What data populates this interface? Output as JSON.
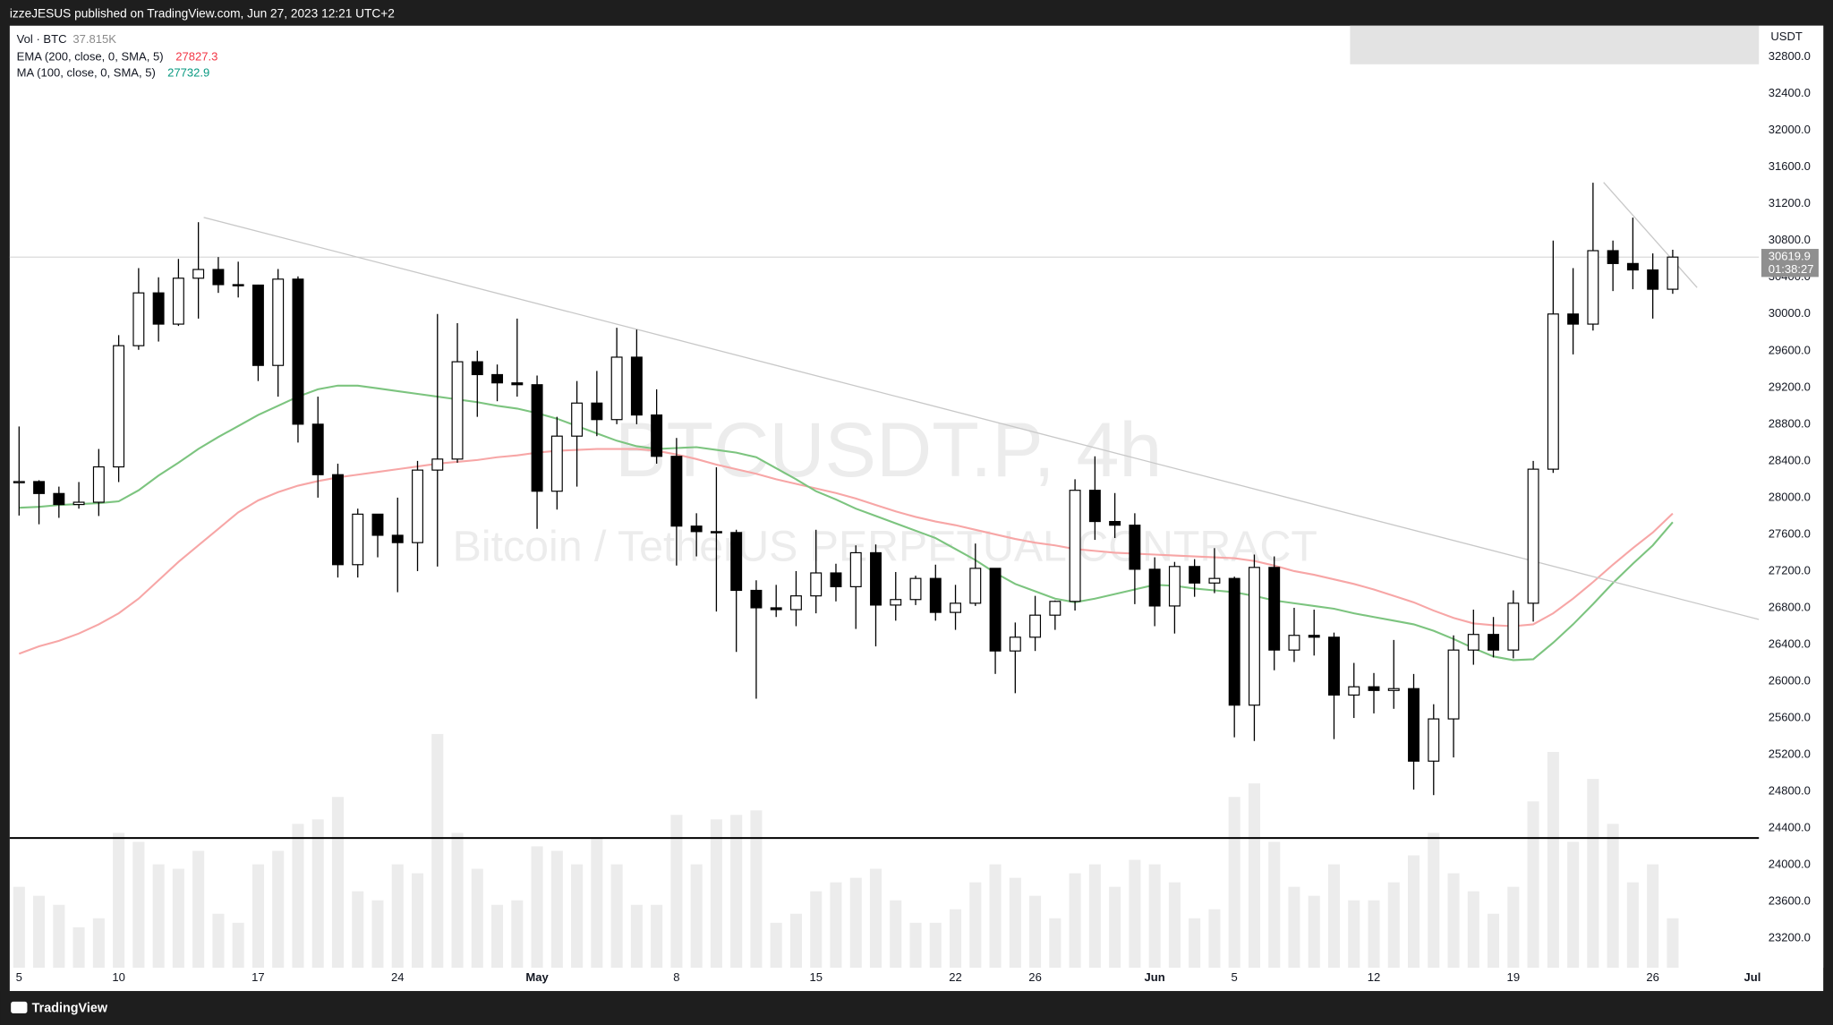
{
  "chart_data": {
    "type": "candlestick",
    "title": "BTCUSDT.P, 4h",
    "subtitle": "Bitcoin / TetherUS PERPETUAL CONTRACT",
    "attribution": "izzeJESUS published on TradingView.com, Jun 27, 2023 12:21 UTC+2",
    "brand": "TradingView",
    "y_unit": "USDT",
    "categories": [
      "5",
      null,
      null,
      null,
      null,
      "10",
      null,
      null,
      null,
      null,
      null,
      null,
      "17",
      null,
      null,
      null,
      null,
      null,
      null,
      "24",
      null,
      null,
      null,
      null,
      null,
      null,
      "May",
      null,
      null,
      null,
      null,
      null,
      null,
      "8",
      null,
      null,
      null,
      null,
      null,
      null,
      "15",
      null,
      null,
      null,
      null,
      null,
      null,
      "22",
      null,
      null,
      null,
      "26",
      null,
      null,
      null,
      null,
      null,
      "Jun",
      null,
      null,
      null,
      "5",
      null,
      null,
      null,
      null,
      null,
      null,
      "12",
      null,
      null,
      null,
      null,
      null,
      null,
      "19",
      null,
      null,
      null,
      null,
      null,
      null,
      "26",
      null,
      null,
      null,
      null,
      "Jul"
    ],
    "open": [
      28170,
      28175,
      28045,
      27925,
      27950,
      28335,
      29655,
      30230,
      29890,
      30390,
      30485,
      30320,
      30315,
      29440,
      30380,
      28800,
      28250,
      27270,
      27820,
      27590,
      27510,
      28300,
      28420,
      29480,
      29340,
      29250,
      29230,
      28070,
      28670,
      29030,
      28850,
      29530,
      28900,
      28450,
      27690,
      27630,
      27620,
      26990,
      26800,
      26780,
      26930,
      27180,
      27030,
      27400,
      26830,
      26890,
      27120,
      26750,
      26850,
      27230,
      26330,
      26480,
      26720,
      26870,
      28080,
      27740,
      27700,
      27220,
      26820,
      27250,
      27070,
      27120,
      25740,
      27240,
      26340,
      26500,
      26480,
      25850,
      25940,
      25900,
      25920,
      25130,
      25590,
      26340,
      26510,
      26340,
      26850,
      28310,
      30000,
      29890,
      30690,
      30550,
      30480,
      30270,
      null,
      null,
      null,
      null
    ],
    "high": [
      28775,
      28190,
      28120,
      28170,
      28530,
      29770,
      30500,
      30400,
      30600,
      31000,
      30620,
      30570,
      30320,
      30490,
      30410,
      29100,
      28370,
      27880,
      27820,
      28000,
      28400,
      30000,
      29900,
      29600,
      29450,
      29950,
      29330,
      28880,
      29270,
      29380,
      29850,
      29830,
      29180,
      28650,
      27830,
      28330,
      27650,
      27100,
      27050,
      27200,
      27650,
      27280,
      27480,
      27490,
      27190,
      27150,
      27270,
      27050,
      27500,
      27230,
      26640,
      26930,
      26880,
      28200,
      28450,
      28050,
      27830,
      27350,
      27300,
      27330,
      27450,
      27140,
      27380,
      27360,
      26800,
      26780,
      26530,
      26200,
      26090,
      26450,
      26080,
      25750,
      26500,
      26780,
      26700,
      26990,
      28400,
      30800,
      30500,
      31430,
      30800,
      31050,
      30660,
      30700,
      null,
      null,
      null,
      null
    ],
    "low": [
      27805,
      27710,
      27780,
      27880,
      27800,
      28170,
      29610,
      29700,
      29870,
      29950,
      30230,
      30180,
      29270,
      29100,
      28600,
      28000,
      27130,
      27130,
      27350,
      26970,
      27200,
      27250,
      28380,
      28880,
      29050,
      29100,
      27660,
      27870,
      28120,
      28670,
      28800,
      28800,
      28370,
      27260,
      27360,
      26760,
      26320,
      25810,
      26700,
      26600,
      26740,
      26870,
      26570,
      26380,
      26660,
      26830,
      26660,
      26560,
      26820,
      26080,
      25870,
      26330,
      26560,
      26770,
      27540,
      27560,
      26840,
      26600,
      26520,
      26920,
      26960,
      25390,
      25350,
      26120,
      26210,
      26280,
      25370,
      25600,
      25650,
      25700,
      24820,
      24760,
      25170,
      26180,
      26260,
      26250,
      26650,
      28270,
      29560,
      29820,
      30250,
      30270,
      29950,
      30220,
      null,
      null,
      null,
      null
    ],
    "close": [
      28175,
      28045,
      27925,
      27950,
      28335,
      29655,
      30230,
      29890,
      30390,
      30485,
      30320,
      30315,
      29440,
      30380,
      28800,
      28250,
      27270,
      27820,
      27590,
      27510,
      28300,
      28420,
      29480,
      29340,
      29250,
      29230,
      28070,
      28670,
      29030,
      28850,
      29530,
      28900,
      28450,
      27690,
      27630,
      27620,
      26990,
      26800,
      26780,
      26930,
      27180,
      27030,
      27400,
      26830,
      26890,
      27120,
      26750,
      26850,
      27230,
      26330,
      26480,
      26720,
      26870,
      28080,
      27740,
      27700,
      27220,
      26820,
      27250,
      27070,
      27120,
      25740,
      27240,
      26340,
      26500,
      26480,
      25850,
      25940,
      25900,
      25920,
      25130,
      25590,
      26340,
      26510,
      26340,
      26850,
      28310,
      30000,
      29890,
      30690,
      30550,
      30480,
      30270,
      30619.9,
      null,
      null,
      null,
      null
    ],
    "up_color": "#ffffff",
    "down_color": "#000000",
    "volume": {
      "name": "Vol · BTC",
      "value_label": "37.815K",
      "color": "#ececec",
      "values": [
        180,
        160,
        140,
        90,
        110,
        300,
        280,
        230,
        220,
        260,
        120,
        100,
        230,
        260,
        320,
        330,
        380,
        170,
        150,
        230,
        210,
        520,
        300,
        220,
        140,
        150,
        270,
        260,
        230,
        290,
        230,
        140,
        140,
        340,
        230,
        330,
        340,
        350,
        100,
        120,
        170,
        190,
        200,
        220,
        150,
        100,
        100,
        130,
        190,
        230,
        200,
        160,
        110,
        210,
        230,
        180,
        240,
        230,
        190,
        110,
        130,
        380,
        410,
        280,
        180,
        160,
        230,
        150,
        150,
        190,
        250,
        300,
        210,
        170,
        120,
        180,
        370,
        480,
        280,
        420,
        320,
        190,
        230,
        110,
        null,
        null,
        null,
        null
      ]
    },
    "overlays": [
      {
        "name": "EMA (200, close, 0, SMA, 5)",
        "last": 27827.3,
        "color": "#f7a6a6",
        "label_color": "#f23645",
        "values": [
          26300,
          26380,
          26440,
          26520,
          26620,
          26740,
          26900,
          27100,
          27300,
          27480,
          27660,
          27840,
          27970,
          28060,
          28130,
          28180,
          28220,
          28250,
          28280,
          28310,
          28340,
          28370,
          28390,
          28410,
          28440,
          28460,
          28490,
          28510,
          28520,
          28530,
          28530,
          28530,
          28510,
          28470,
          28420,
          28360,
          28310,
          28260,
          28200,
          28150,
          28100,
          28050,
          27990,
          27920,
          27850,
          27790,
          27740,
          27700,
          27650,
          27600,
          27550,
          27510,
          27480,
          27440,
          27420,
          27400,
          27390,
          27380,
          27370,
          27360,
          27350,
          27340,
          27310,
          27260,
          27200,
          27160,
          27110,
          27060,
          27000,
          26930,
          26860,
          26770,
          26690,
          26630,
          26610,
          26600,
          26620,
          26740,
          26900,
          27080,
          27270,
          27450,
          27620,
          27827.3,
          null,
          null,
          null,
          null
        ]
      },
      {
        "name": "MA (100, close, 0, SMA, 5)",
        "last": 27732.9,
        "color": "#7cc47f",
        "label_color": "#089981",
        "values": [
          27890,
          27900,
          27920,
          27930,
          27940,
          27960,
          28080,
          28240,
          28380,
          28530,
          28660,
          28780,
          28900,
          29000,
          29100,
          29180,
          29220,
          29220,
          29190,
          29160,
          29130,
          29100,
          29070,
          29040,
          29000,
          28970,
          28920,
          28860,
          28780,
          28700,
          28620,
          28560,
          28530,
          28540,
          28550,
          28520,
          28490,
          28440,
          28320,
          28200,
          28070,
          27980,
          27880,
          27800,
          27720,
          27640,
          27560,
          27440,
          27320,
          27180,
          27060,
          26980,
          26900,
          26860,
          26900,
          26950,
          27000,
          27050,
          27040,
          27010,
          26990,
          26970,
          26930,
          26880,
          26850,
          26820,
          26790,
          26740,
          26700,
          26660,
          26620,
          26550,
          26460,
          26360,
          26270,
          26230,
          26240,
          26420,
          26620,
          26840,
          27070,
          27280,
          27480,
          27732.9,
          null,
          null,
          null,
          null
        ]
      }
    ],
    "last_price": 30619.9,
    "countdown": "01:38:27",
    "ylim": [
      22880,
      33140
    ],
    "yticks": [
      {
        "value": 23200,
        "label": "23200.0"
      },
      {
        "value": 23600,
        "label": "23600.0"
      },
      {
        "value": 24000,
        "label": "24000.0"
      },
      {
        "value": 24400,
        "label": "24400.0"
      },
      {
        "value": 24800,
        "label": "24800.0"
      },
      {
        "value": 25200,
        "label": "25200.0"
      },
      {
        "value": 25600,
        "label": "25600.0"
      },
      {
        "value": 26000,
        "label": "26000.0"
      },
      {
        "value": 26400,
        "label": "26400.0"
      },
      {
        "value": 26800,
        "label": "26800.0"
      },
      {
        "value": 27200,
        "label": "27200.0"
      },
      {
        "value": 27600,
        "label": "27600.0"
      },
      {
        "value": 28000,
        "label": "28000.0"
      },
      {
        "value": 28400,
        "label": "28400.0"
      },
      {
        "value": 28800,
        "label": "28800.0"
      },
      {
        "value": 29200,
        "label": "29200.0"
      },
      {
        "value": 29600,
        "label": "29600.0"
      },
      {
        "value": 30000,
        "label": "30000.0"
      },
      {
        "value": 30400,
        "label": "30400.0"
      },
      {
        "value": 30800,
        "label": "30800.0"
      },
      {
        "value": 31200,
        "label": "31200.0"
      },
      {
        "value": 31600,
        "label": "31600.0"
      },
      {
        "value": 32000,
        "label": "32000.0"
      },
      {
        "value": 32400,
        "label": "32400.0"
      },
      {
        "value": 32800,
        "label": "32800.0"
      }
    ]
  }
}
